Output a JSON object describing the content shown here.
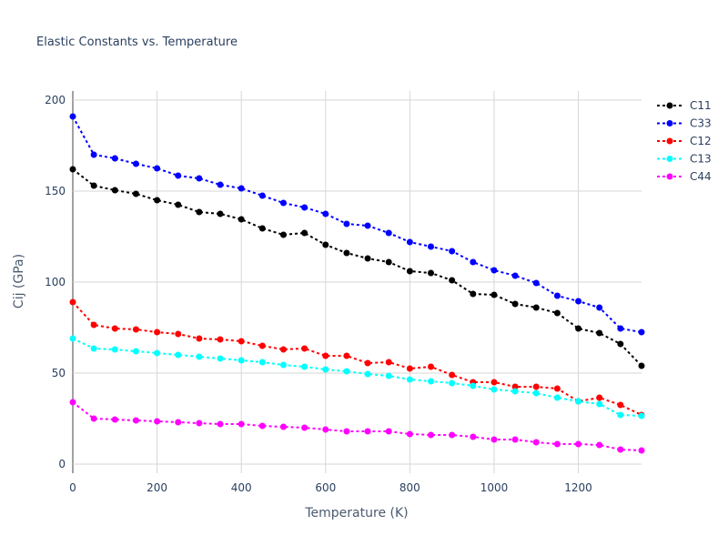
{
  "chart_data": {
    "type": "line",
    "title": "Elastic Constants vs. Temperature",
    "xlabel": "Temperature (K)",
    "ylabel": "Cij (GPa)",
    "xlim": [
      0,
      1350
    ],
    "ylim": [
      -5,
      205
    ],
    "xticks": [
      0,
      200,
      400,
      600,
      800,
      1000,
      1200
    ],
    "yticks": [
      0,
      50,
      100,
      150,
      200
    ],
    "grid": true,
    "legend_position": "top-right",
    "x": [
      0,
      50,
      100,
      150,
      200,
      250,
      300,
      350,
      400,
      450,
      500,
      550,
      600,
      650,
      700,
      750,
      800,
      850,
      900,
      950,
      1000,
      1050,
      1100,
      1150,
      1200,
      1250,
      1300,
      1350
    ],
    "series": [
      {
        "name": "C11",
        "color": "#000000",
        "values": [
          162,
          153,
          150.5,
          148.5,
          145,
          142.5,
          138.5,
          137.5,
          134.5,
          129.5,
          126,
          127,
          120.5,
          116,
          113,
          111,
          106,
          105,
          101,
          93.5,
          93,
          88,
          86,
          83,
          74.5,
          72,
          66,
          54
        ]
      },
      {
        "name": "C33",
        "color": "#0000ff",
        "values": [
          191,
          170,
          168,
          165,
          162.5,
          158.5,
          157,
          153.5,
          151.5,
          147.5,
          143.5,
          141,
          137.5,
          132,
          131,
          127,
          122,
          119.5,
          117,
          111,
          106.5,
          103.5,
          99.5,
          92.5,
          89.5,
          86,
          74.5,
          72.5
        ]
      },
      {
        "name": "C12",
        "color": "#ff0000",
        "values": [
          89,
          76.5,
          74.5,
          74,
          72.5,
          71.5,
          69,
          68.5,
          67.5,
          65,
          63,
          63.5,
          59.5,
          59.5,
          55.5,
          56,
          52.5,
          53.5,
          49,
          45,
          45,
          42.5,
          42.5,
          41.5,
          34.5,
          36.5,
          32.5,
          27
        ]
      },
      {
        "name": "C13",
        "color": "#00ffff",
        "values": [
          69,
          63.5,
          63,
          62,
          61,
          60,
          59,
          58,
          57,
          56,
          54.5,
          53.5,
          52,
          51,
          49.5,
          48.5,
          46.5,
          45.5,
          44.5,
          43,
          41,
          40,
          39,
          36.5,
          34.5,
          33,
          27,
          26.5
        ]
      },
      {
        "name": "C44",
        "color": "#ff00ff",
        "values": [
          34,
          25,
          24.5,
          24,
          23.5,
          23,
          22.5,
          22,
          22,
          21,
          20.5,
          20,
          19,
          18,
          18,
          18,
          16.5,
          16,
          16,
          15,
          13.5,
          13.5,
          12,
          11,
          11,
          10.5,
          8,
          7.5
        ]
      }
    ]
  }
}
